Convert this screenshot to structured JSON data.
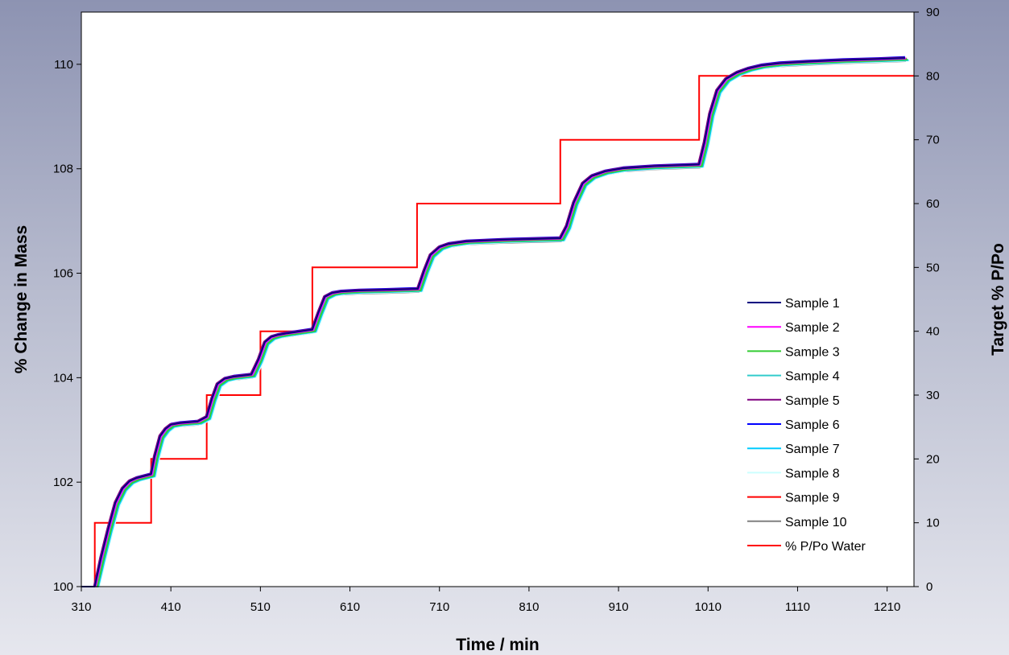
{
  "chart_data": {
    "type": "line",
    "title": "",
    "xlabel": "Time / min",
    "ylabel": "% Change in Mass",
    "y2label": "Target % P/Po",
    "xlim": [
      310,
      1240
    ],
    "ylim": [
      100,
      111
    ],
    "y2lim": [
      0,
      90
    ],
    "xticks": [
      310,
      410,
      510,
      610,
      710,
      810,
      910,
      1010,
      1110,
      1210
    ],
    "yticks": [
      100,
      102,
      104,
      106,
      108,
      110
    ],
    "y2ticks": [
      0,
      10,
      20,
      30,
      40,
      50,
      60,
      70,
      80,
      90
    ],
    "grid": false,
    "legend_position": "right",
    "mass_curve": {
      "x": [
        310,
        325,
        332,
        340,
        348,
        356,
        364,
        372,
        388,
        392,
        398,
        404,
        410,
        420,
        440,
        450,
        456,
        462,
        470,
        480,
        500,
        508,
        515,
        522,
        530,
        540,
        568,
        575,
        582,
        590,
        600,
        620,
        650,
        686,
        693,
        700,
        710,
        720,
        740,
        780,
        845,
        852,
        860,
        870,
        880,
        895,
        915,
        950,
        1000,
        1006,
        1012,
        1020,
        1030,
        1042,
        1055,
        1070,
        1090,
        1120,
        1160,
        1200,
        1230
      ],
      "y": [
        100,
        100,
        100.55,
        101.1,
        101.6,
        101.88,
        102.02,
        102.08,
        102.15,
        102.5,
        102.88,
        103.02,
        103.1,
        103.13,
        103.16,
        103.25,
        103.6,
        103.88,
        103.98,
        104.02,
        104.06,
        104.35,
        104.68,
        104.78,
        104.82,
        104.85,
        104.92,
        105.25,
        105.55,
        105.62,
        105.65,
        105.67,
        105.68,
        105.7,
        106.05,
        106.35,
        106.5,
        106.56,
        106.61,
        106.64,
        106.67,
        106.9,
        107.35,
        107.72,
        107.86,
        107.95,
        108.01,
        108.05,
        108.08,
        108.5,
        109.05,
        109.5,
        109.72,
        109.84,
        109.92,
        109.98,
        110.02,
        110.05,
        110.08,
        110.1,
        110.12
      ]
    },
    "series": [
      {
        "name": "Sample 1",
        "color": "#000080",
        "x_offset": 0,
        "y_offset": 0
      },
      {
        "name": "Sample 2",
        "color": "#ff00ff",
        "x_offset": 1,
        "y_offset": -0.01
      },
      {
        "name": "Sample 3",
        "color": "#33cc33",
        "x_offset": 3,
        "y_offset": -0.03
      },
      {
        "name": "Sample 4",
        "color": "#33cccc",
        "x_offset": 2,
        "y_offset": -0.02
      },
      {
        "name": "Sample 5",
        "color": "#800080",
        "x_offset": -1,
        "y_offset": 0.01
      },
      {
        "name": "Sample 6",
        "color": "#0000ff",
        "x_offset": 0,
        "y_offset": 0.02
      },
      {
        "name": "Sample 7",
        "color": "#00ccff",
        "x_offset": 4,
        "y_offset": -0.04
      },
      {
        "name": "Sample 8",
        "color": "#ccffff",
        "x_offset": 5,
        "y_offset": -0.05
      },
      {
        "name": "Sample 9",
        "color": "#ff0000",
        "x_offset": 2,
        "y_offset": -0.01
      },
      {
        "name": "Sample 10",
        "color": "#808080",
        "x_offset": 1,
        "y_offset": -0.06
      }
    ],
    "target_series": {
      "name": "% P/Po Water",
      "color": "#ff0000",
      "axis": "right",
      "x": [
        310,
        325,
        325,
        388,
        388,
        450,
        450,
        510,
        510,
        568,
        568,
        685,
        685,
        845,
        845,
        1000,
        1000,
        1240
      ],
      "y": [
        0,
        0,
        10,
        10,
        20,
        20,
        30,
        30,
        40,
        40,
        50,
        50,
        60,
        60,
        70,
        70,
        80,
        80
      ]
    }
  }
}
